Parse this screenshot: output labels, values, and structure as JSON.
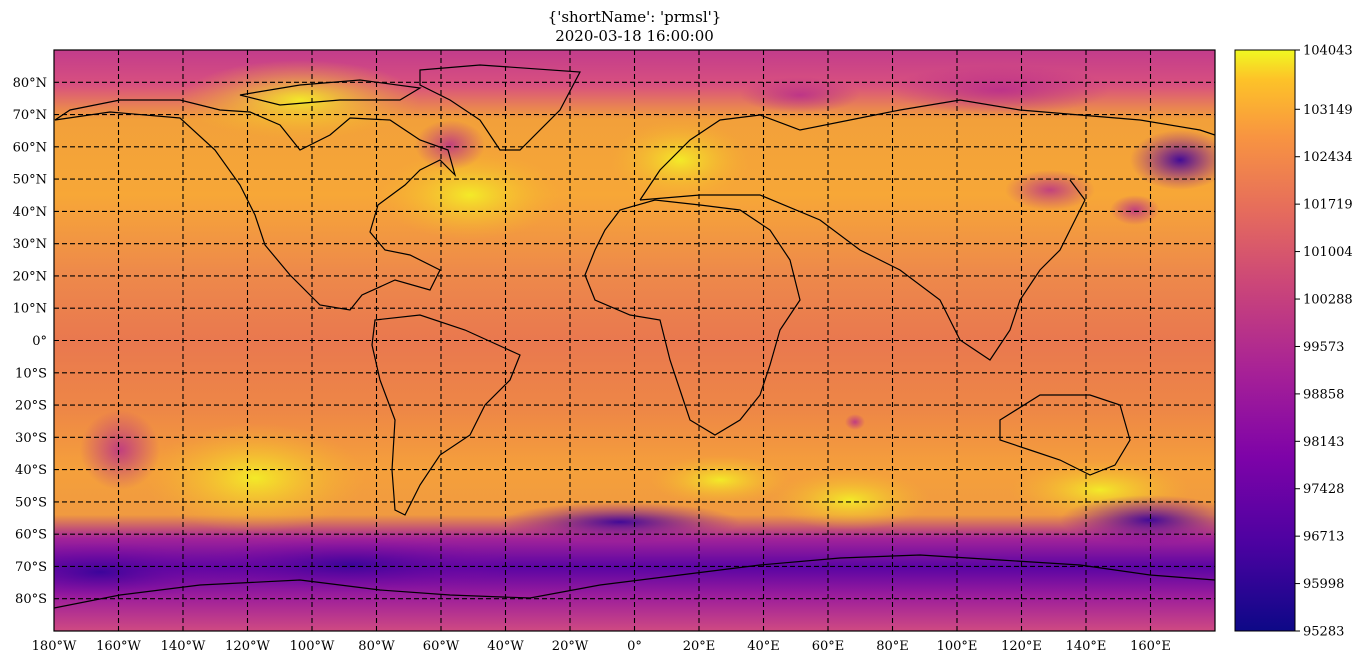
{
  "title": {
    "line1": "{'shortName': 'prmsl'}",
    "line2": "2020-03-18 16:00:00"
  },
  "colormap": "plasma",
  "map": {
    "projection": "PlateCarree",
    "features": [
      "coastlines",
      "country borders"
    ],
    "gridlines": "dashed black",
    "lon_range": [
      -180,
      180
    ],
    "lat_range": [
      -90,
      90
    ],
    "lon_ticks": [
      "180°W",
      "160°W",
      "140°W",
      "120°W",
      "100°W",
      "80°W",
      "60°W",
      "40°W",
      "20°W",
      "0°",
      "20°E",
      "40°E",
      "60°E",
      "80°E",
      "100°E",
      "120°E",
      "140°E",
      "160°E"
    ],
    "lat_ticks": [
      "80°N",
      "70°N",
      "60°N",
      "50°N",
      "40°N",
      "30°N",
      "20°N",
      "10°N",
      "0°",
      "10°S",
      "20°S",
      "30°S",
      "40°S",
      "50°S",
      "60°S",
      "70°S",
      "80°S"
    ]
  },
  "colorbar": {
    "ticks": [
      "104043",
      "103149",
      "102434",
      "101719",
      "101004",
      "100288",
      "99573",
      "98858",
      "98143",
      "97428",
      "96713",
      "95998",
      "95283"
    ],
    "min": 95283,
    "max": 104043
  }
}
